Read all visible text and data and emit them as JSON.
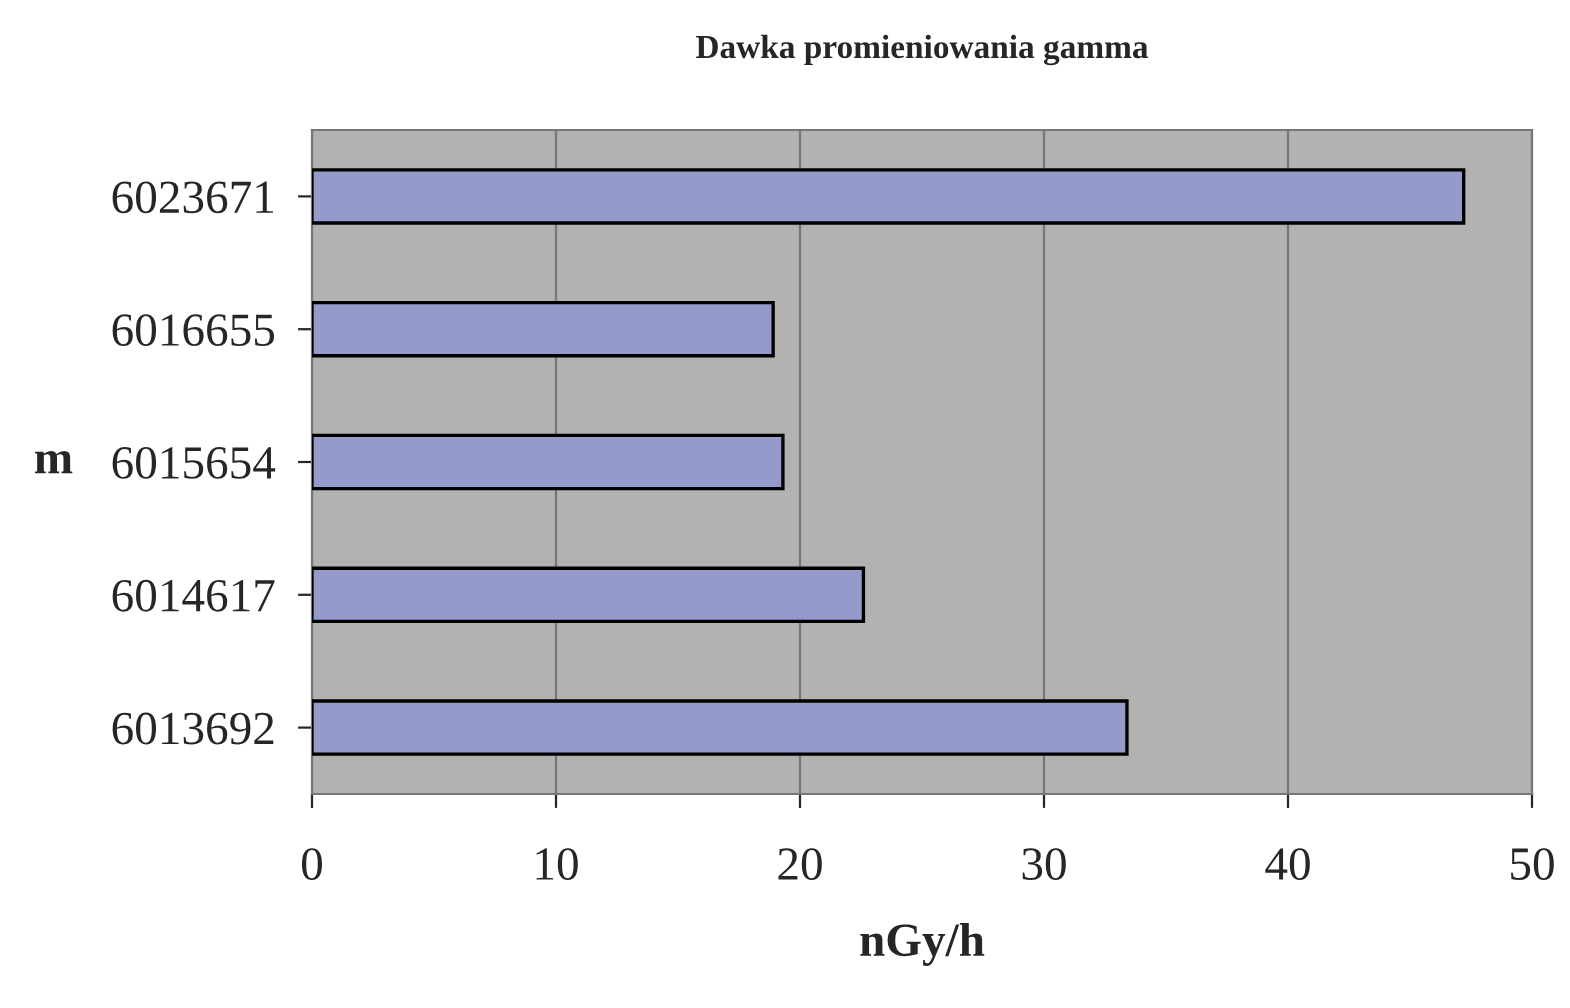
{
  "chart_data": {
    "type": "bar",
    "orientation": "horizontal",
    "title": "Dawka promieniowania gamma",
    "xlabel": "nGy/h",
    "categories": [
      "6023671",
      "6016655",
      "6015654",
      "6014617",
      "6013692"
    ],
    "values": [
      47.2,
      18.9,
      19.3,
      22.6,
      33.4
    ],
    "color": "#949bcb",
    "xlim": [
      0,
      50
    ],
    "xticks": [
      0,
      10,
      20,
      30,
      40,
      50
    ],
    "grid": "x",
    "legend": false,
    "annotations": [
      "m"
    ]
  }
}
